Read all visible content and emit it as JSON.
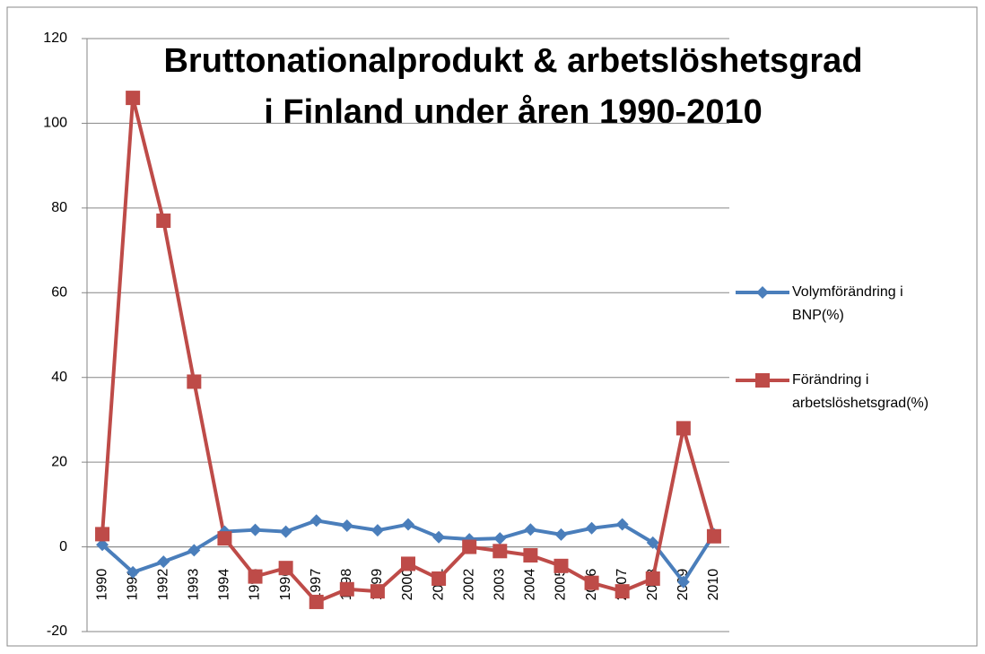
{
  "chart_data": {
    "type": "line",
    "title": [
      "Bruttonationalprodukt & arbetslöshetsgrad",
      "i Finland under åren 1990-2010"
    ],
    "categories": [
      "1990",
      "1991",
      "1992",
      "1993",
      "1994",
      "1995",
      "1996",
      "1997",
      "1998",
      "1999",
      "2000",
      "2001",
      "2002",
      "2003",
      "2004",
      "2005",
      "2006",
      "2007",
      "2008",
      "2009",
      "2010"
    ],
    "series": [
      {
        "name": "Volymförändring i BNP(%)",
        "color": "#4a7ebb",
        "marker": "diamond",
        "values": [
          0.5,
          -6,
          -3.5,
          -0.8,
          3.6,
          4,
          3.6,
          6.2,
          5,
          3.9,
          5.3,
          2.3,
          1.8,
          2,
          4.1,
          2.9,
          4.4,
          5.3,
          1,
          -8.3,
          3
        ]
      },
      {
        "name": "Förändring i arbetslöshetsgrad(%)",
        "color": "#be4b48",
        "marker": "square",
        "values": [
          3,
          106,
          77,
          39,
          2,
          -7,
          -5,
          -13,
          -10,
          -10.5,
          -4,
          -7.5,
          0,
          -1,
          -2,
          -4.5,
          -8.5,
          -10.5,
          -7.5,
          28,
          2.5
        ]
      }
    ],
    "ylim": [
      -20,
      120
    ],
    "yticks": [
      -20,
      0,
      20,
      40,
      60,
      80,
      100,
      120
    ],
    "grid": true,
    "legend": "right"
  }
}
